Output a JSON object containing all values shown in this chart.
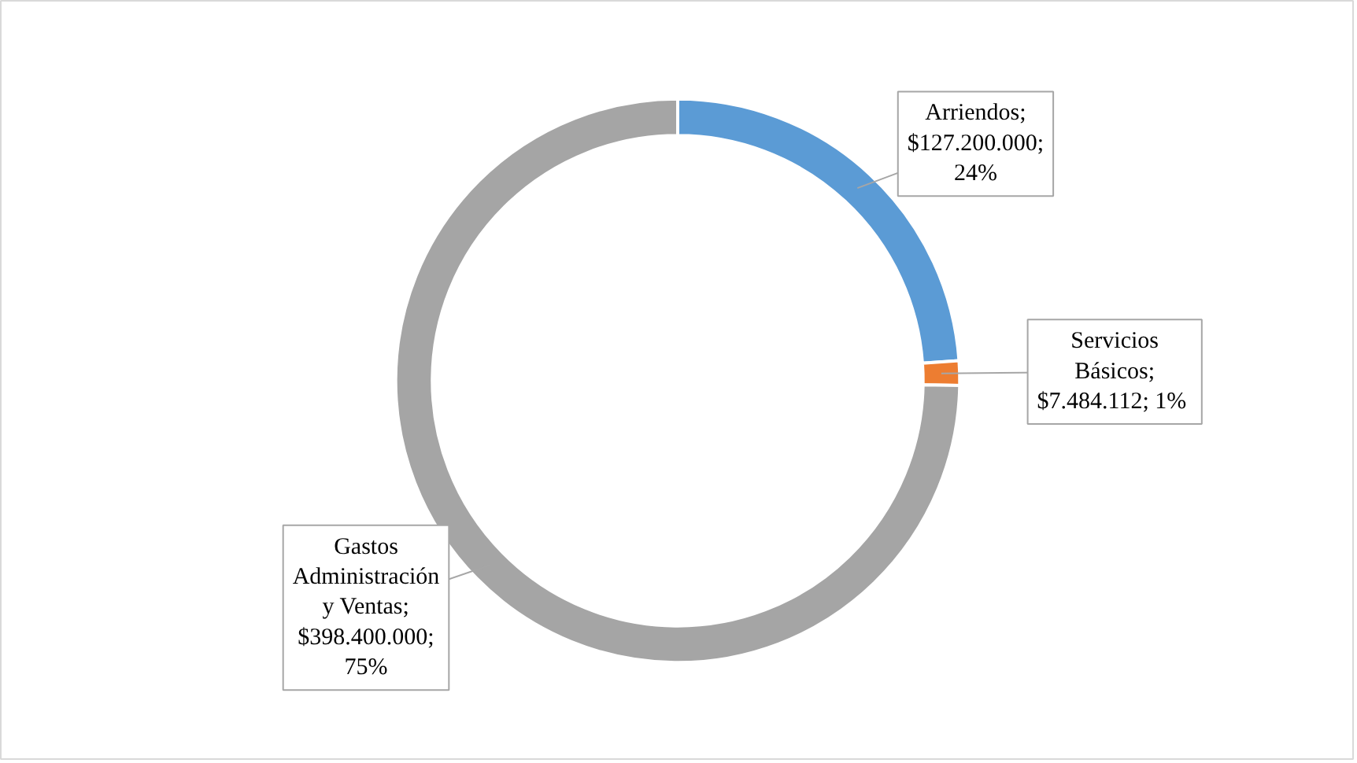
{
  "chart_data": {
    "type": "donut",
    "categories": [
      "Arriendos",
      "Servicios Básicos",
      "Gastos Administración y Ventas"
    ],
    "values": [
      127200000,
      7484112,
      398400000
    ],
    "colors": [
      "#5b9bd5",
      "#ed7d31",
      "#a5a5a5"
    ],
    "value_labels": [
      "; $127.200.000; 24%",
      "; $7.484.112;  1%",
      "; $398.400.000; 75%"
    ],
    "legend": false
  }
}
